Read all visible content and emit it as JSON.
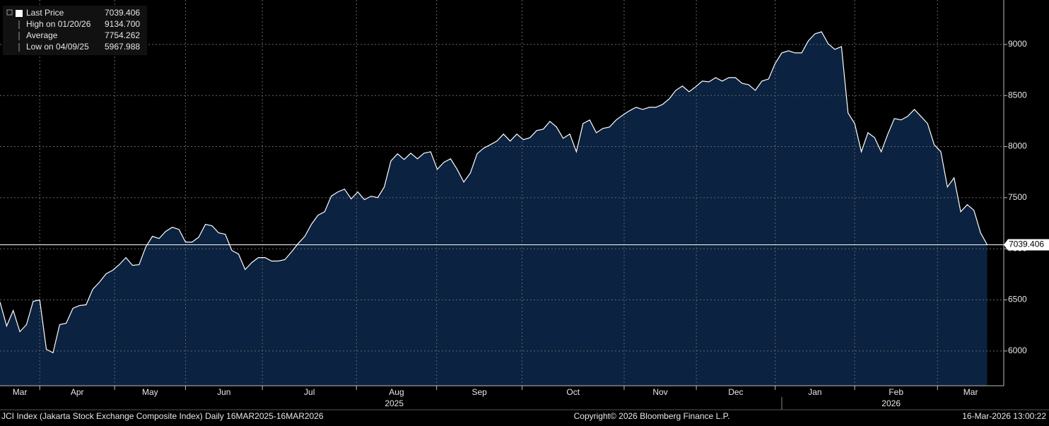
{
  "chart_data": {
    "type": "area",
    "series": [
      {
        "name": "Last Price",
        "color": "#ffffff",
        "fill": "#0b2240",
        "values": [
          6479,
          6244,
          6396,
          6189,
          6258,
          6486,
          6500,
          6017,
          5982,
          6258,
          6272,
          6417,
          6445,
          6452,
          6604,
          6673,
          6755,
          6790,
          6845,
          6914,
          6838,
          6845,
          7018,
          7122,
          7101,
          7170,
          7211,
          7190,
          7066,
          7066,
          7115,
          7239,
          7225,
          7156,
          7142,
          6983,
          6949,
          6797,
          6866,
          6914,
          6914,
          6880,
          6880,
          6894,
          6970,
          7052,
          7122,
          7239,
          7329,
          7363,
          7515,
          7557,
          7584,
          7488,
          7557,
          7481,
          7515,
          7501,
          7605,
          7860,
          7930,
          7874,
          7936,
          7881,
          7936,
          7950,
          7778,
          7847,
          7881,
          7778,
          7653,
          7743,
          7930,
          7985,
          8019,
          8054,
          8123,
          8054,
          8123,
          8068,
          8088,
          8157,
          8171,
          8247,
          8192,
          8081,
          8123,
          7950,
          8226,
          8261,
          8136,
          8178,
          8192,
          8261,
          8309,
          8351,
          8385,
          8364,
          8385,
          8385,
          8413,
          8468,
          8551,
          8593,
          8537,
          8586,
          8641,
          8634,
          8675,
          8641,
          8675,
          8675,
          8620,
          8606,
          8551,
          8641,
          8662,
          8814,
          8917,
          8938,
          8917,
          8917,
          9035,
          9104,
          9124,
          9007,
          8952,
          8979,
          8330,
          8226,
          7950,
          8136,
          8088,
          7950,
          8123,
          8275,
          8261,
          8296,
          8364,
          8296,
          8226,
          8019,
          7950,
          7605,
          7695,
          7363,
          7432,
          7377,
          7156,
          7039.406
        ]
      }
    ],
    "ylim": [
      5660,
      9435
    ],
    "yticks": [
      6000,
      6500,
      7000,
      7500,
      8000,
      8500,
      9000
    ],
    "xlim": [
      0,
      151.5
    ],
    "xticks": [
      {
        "value": 0,
        "label": "Mar"
      },
      {
        "value": 6,
        "label": "Apr"
      },
      {
        "value": 17.3,
        "label": "May"
      },
      {
        "value": 28,
        "label": "Jun"
      },
      {
        "value": 39.6,
        "label": "Jul"
      },
      {
        "value": 53.8,
        "label": "Aug"
      },
      {
        "value": 65.9,
        "label": "Sep"
      },
      {
        "value": 78.8,
        "label": "Oct"
      },
      {
        "value": 94.2,
        "label": "Nov"
      },
      {
        "value": 105.1,
        "label": "Dec"
      },
      {
        "value": 117,
        "label": "Jan"
      },
      {
        "value": 129,
        "label": "Feb"
      },
      {
        "value": 141.5,
        "label": "Mar"
      }
    ],
    "years": [
      {
        "value": 59.5,
        "label": "2025"
      },
      {
        "value": 134.5,
        "label": "2026"
      }
    ],
    "grid": true,
    "legend": [
      {
        "name": "Last Price",
        "value": 7039.406
      },
      {
        "name": "High on 01/20/26",
        "value": 9134.7,
        "value_label": "9134.700"
      },
      {
        "name": "Average",
        "value": 7754.262
      },
      {
        "name": "Low on 04/09/25",
        "value": 5967.988
      }
    ],
    "footer": {
      "left": "JCI Index (Jakarta Stock Exchange Composite Index) Daily 16MAR2025-16MAR2026",
      "center": "Copyright© 2026 Bloomberg Finance L.P.",
      "right": "16-Mar-2026 13:00:22"
    }
  }
}
